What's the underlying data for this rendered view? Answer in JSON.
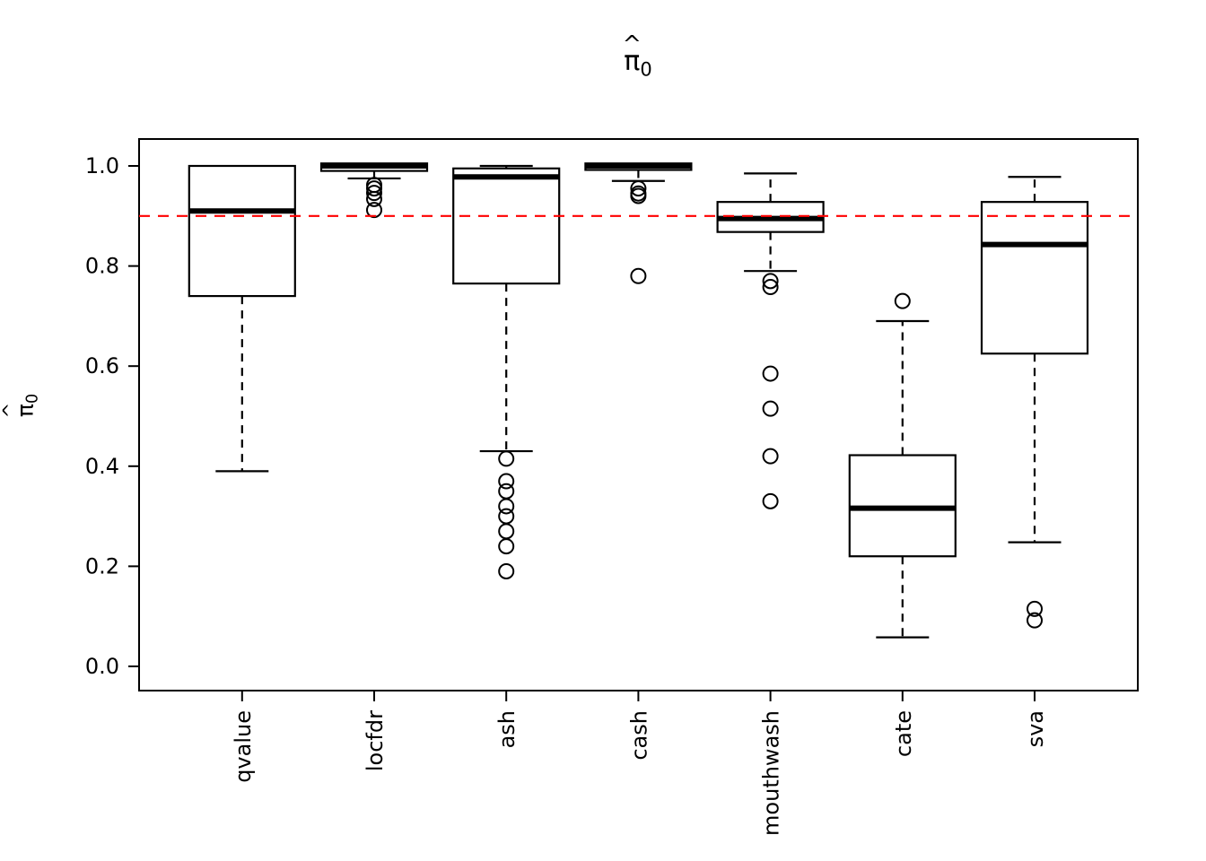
{
  "figure": {
    "background": "#ffffff"
  },
  "chart_data": {
    "type": "boxplot",
    "title": "π̂0",
    "title_parts": {
      "base": "π",
      "hat": "^",
      "sub": "0"
    },
    "ylabel": "π̂0",
    "ylabel_parts": {
      "base": "π",
      "hat": "^",
      "sub": "0"
    },
    "xlabel": "",
    "ylim": [
      -0.05,
      1.05
    ],
    "yticks": [
      "0.0",
      "0.2",
      "0.4",
      "0.6",
      "0.8",
      "1.0"
    ],
    "grid": false,
    "box_color": "#000000",
    "reference_line": {
      "y": 0.9,
      "color": "#FF0000",
      "style": "dashed"
    },
    "categories": [
      "qvalue",
      "locfdr",
      "ash",
      "cash",
      "mouthwash",
      "cate",
      "sva"
    ],
    "boxes": [
      {
        "label": "qvalue",
        "whisker_low": 0.39,
        "q1": 0.74,
        "median": 0.91,
        "q3": 1.0,
        "whisker_high": 1.0,
        "outliers": []
      },
      {
        "label": "locfdr",
        "whisker_low": 0.975,
        "q1": 0.99,
        "median": 1.0,
        "q3": 1.005,
        "whisker_high": 1.005,
        "outliers": [
          0.962,
          0.955,
          0.946,
          0.934,
          0.912
        ]
      },
      {
        "label": "ash",
        "whisker_low": 0.43,
        "q1": 0.765,
        "median": 0.978,
        "q3": 0.995,
        "whisker_high": 1.0,
        "outliers": [
          0.415,
          0.37,
          0.35,
          0.32,
          0.3,
          0.27,
          0.24,
          0.19
        ]
      },
      {
        "label": "cash",
        "whisker_low": 0.97,
        "q1": 0.992,
        "median": 1.0,
        "q3": 1.005,
        "whisker_high": 1.005,
        "outliers": [
          0.955,
          0.945,
          0.94,
          0.78
        ]
      },
      {
        "label": "mouthwash",
        "whisker_low": 0.79,
        "q1": 0.868,
        "median": 0.895,
        "q3": 0.928,
        "whisker_high": 0.985,
        "outliers": [
          0.77,
          0.758,
          0.585,
          0.515,
          0.42,
          0.33
        ]
      },
      {
        "label": "cate",
        "whisker_low": 0.058,
        "q1": 0.22,
        "median": 0.316,
        "q3": 0.422,
        "whisker_high": 0.69,
        "outliers": [
          0.73
        ]
      },
      {
        "label": "sva",
        "whisker_low": 0.248,
        "q1": 0.625,
        "median": 0.843,
        "q3": 0.928,
        "whisker_high": 0.978,
        "outliers": [
          0.115,
          0.092
        ]
      }
    ]
  }
}
